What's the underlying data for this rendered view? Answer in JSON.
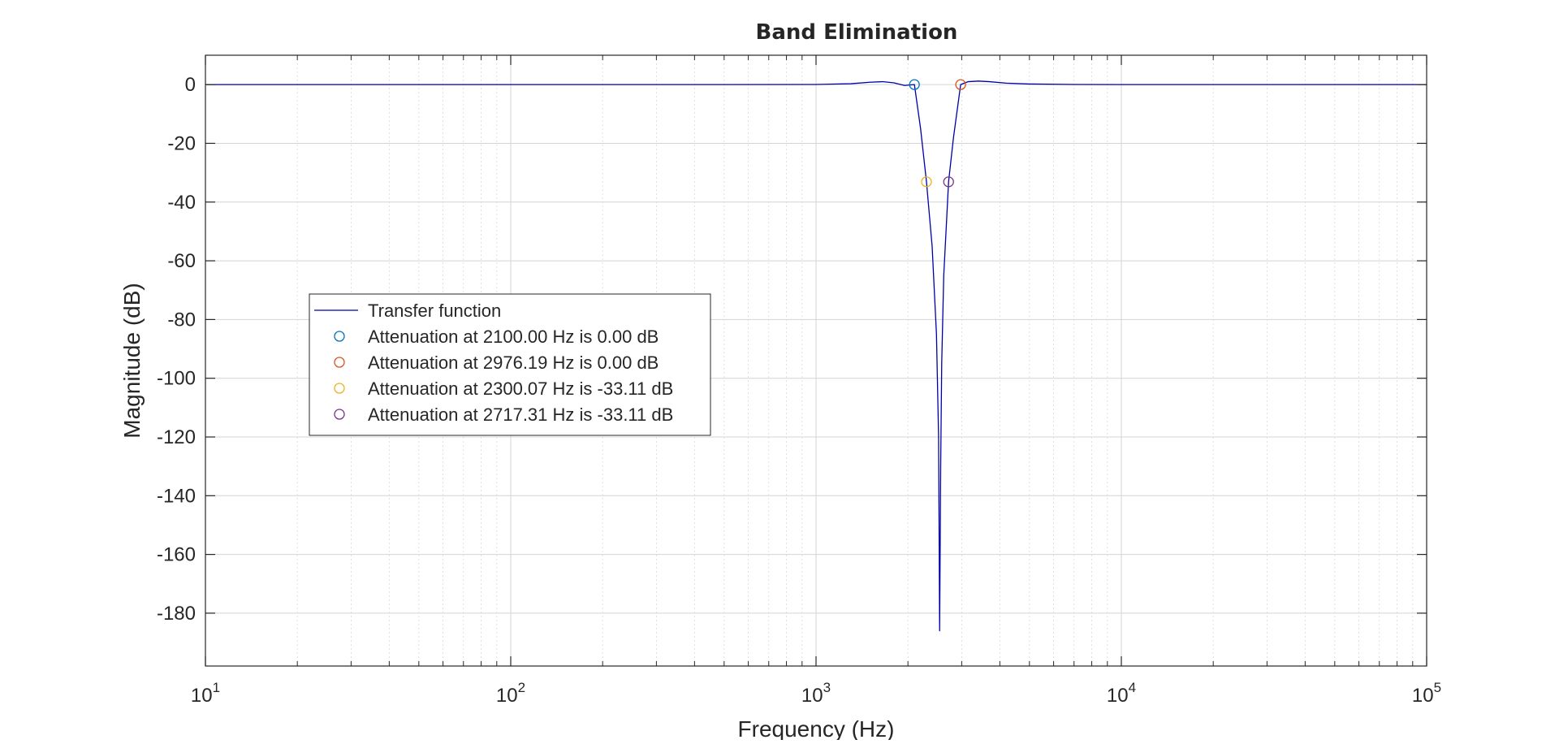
{
  "chart_data": {
    "type": "line",
    "title": "Band Elimination",
    "xlabel": "Frequency (Hz)",
    "ylabel": "Magnitude (dB)",
    "xscale": "log",
    "xlim": [
      10,
      100000
    ],
    "ylim": [
      -198,
      10
    ],
    "grid": true,
    "minor_grid": true,
    "x_ticks": [
      {
        "base": "10",
        "exp": "1"
      },
      {
        "base": "10",
        "exp": "2"
      },
      {
        "base": "10",
        "exp": "3"
      },
      {
        "base": "10",
        "exp": "4"
      },
      {
        "base": "10",
        "exp": "5"
      }
    ],
    "y_ticks": [
      "0",
      "-20",
      "-40",
      "-60",
      "-80",
      "-100",
      "-120",
      "-140",
      "-160",
      "-180"
    ],
    "legend_position": "center-left",
    "series": [
      {
        "name": "Transfer function",
        "color": "#0000aa",
        "kind": "line",
        "x": [
          10,
          100,
          500,
          1000,
          1300,
          1500,
          1650,
          1800,
          1950,
          2100,
          2200,
          2300.07,
          2400,
          2480,
          2520,
          2540,
          2560,
          2580,
          2620,
          2717.31,
          2820,
          2976.19,
          3150,
          3400,
          3700,
          4200,
          5000,
          7000,
          10000,
          30000,
          100000
        ],
        "y": [
          0,
          0,
          0,
          0.05,
          0.3,
          0.8,
          1.0,
          0.6,
          -0.3,
          0,
          -15,
          -33.11,
          -55,
          -85,
          -120,
          -186,
          -130,
          -95,
          -65,
          -33.11,
          -18,
          0,
          1.0,
          1.2,
          1.0,
          0.5,
          0.2,
          0.05,
          0,
          0,
          0
        ]
      },
      {
        "name": "Attenuation at 2100.00 Hz is 0.00 dB",
        "color": "#0072bd",
        "kind": "marker",
        "x": [
          2100.0
        ],
        "y": [
          0.0
        ]
      },
      {
        "name": "Attenuation at 2976.19 Hz is 0.00 dB",
        "color": "#d95319",
        "kind": "marker",
        "x": [
          2976.19
        ],
        "y": [
          0.0
        ]
      },
      {
        "name": "Attenuation at 2300.07 Hz is -33.11 dB",
        "color": "#edb120",
        "kind": "marker",
        "x": [
          2300.07
        ],
        "y": [
          -33.11
        ]
      },
      {
        "name": "Attenuation at 2717.31 Hz is -33.11 dB",
        "color": "#7e2f8e",
        "kind": "marker",
        "x": [
          2717.31
        ],
        "y": [
          -33.11
        ]
      }
    ]
  }
}
